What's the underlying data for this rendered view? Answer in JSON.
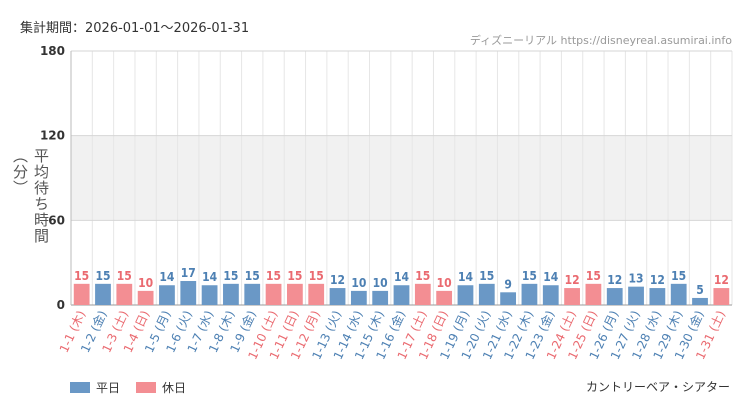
{
  "header": {
    "period": "集計期間：2026-01-01～2026-01-31",
    "source": "ディズニーリアル https://disneyreal.asumirai.info"
  },
  "footer": {
    "attraction": "カントリーベア・シアター"
  },
  "colors": {
    "weekday": "#6a98c6",
    "holiday": "#f38e93",
    "weekday_text": "#4d80b3",
    "holiday_text": "#ea6a70",
    "band": "#f1f1f1"
  },
  "chart_data": {
    "type": "bar",
    "ylabel": "平均待ち時間（分）",
    "ylim": [
      0,
      180
    ],
    "yticks": [
      0,
      60,
      120,
      180
    ],
    "grid": true,
    "legend_position": "bottom-left",
    "legend": [
      {
        "name": "平日",
        "key": "weekday"
      },
      {
        "name": "休日",
        "key": "holiday"
      }
    ],
    "categories": [
      "1-1 (木)",
      "1-2 (金)",
      "1-3 (土)",
      "1-4 (日)",
      "1-5 (月)",
      "1-6 (火)",
      "1-7 (水)",
      "1-8 (木)",
      "1-9 (金)",
      "1-10 (土)",
      "1-11 (日)",
      "1-12 (月)",
      "1-13 (火)",
      "1-14 (水)",
      "1-15 (木)",
      "1-16 (金)",
      "1-17 (土)",
      "1-18 (日)",
      "1-19 (月)",
      "1-20 (火)",
      "1-21 (水)",
      "1-22 (木)",
      "1-23 (金)",
      "1-24 (土)",
      "1-25 (日)",
      "1-26 (月)",
      "1-27 (火)",
      "1-28 (水)",
      "1-29 (木)",
      "1-30 (金)",
      "1-31 (土)"
    ],
    "values": [
      15,
      15,
      15,
      10,
      14,
      17,
      14,
      15,
      15,
      15,
      15,
      15,
      12,
      10,
      10,
      14,
      15,
      10,
      14,
      15,
      9,
      15,
      14,
      12,
      15,
      12,
      13,
      12,
      15,
      5,
      12
    ],
    "day_type": [
      "holiday",
      "weekday",
      "holiday",
      "holiday",
      "weekday",
      "weekday",
      "weekday",
      "weekday",
      "weekday",
      "holiday",
      "holiday",
      "holiday",
      "weekday",
      "weekday",
      "weekday",
      "weekday",
      "holiday",
      "holiday",
      "weekday",
      "weekday",
      "weekday",
      "weekday",
      "weekday",
      "holiday",
      "holiday",
      "weekday",
      "weekday",
      "weekday",
      "weekday",
      "weekday",
      "holiday"
    ]
  }
}
